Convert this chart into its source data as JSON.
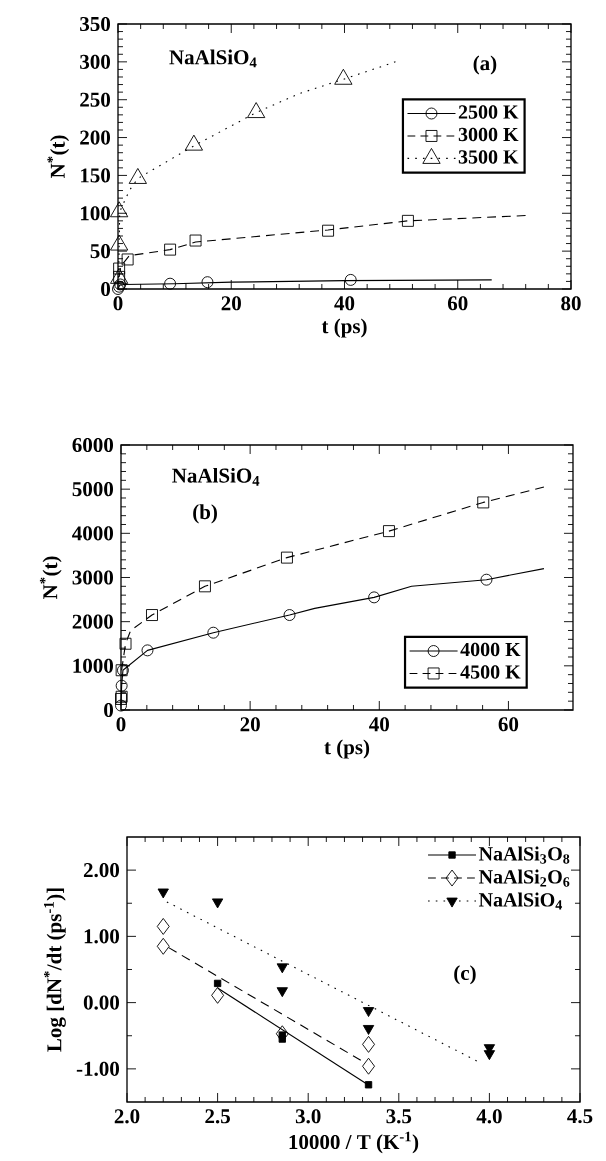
{
  "chart_data": [
    {
      "type": "line",
      "xlabel": "t (ps)",
      "ylabel": "N$^{*}$(t)",
      "xlim": [
        0,
        80
      ],
      "ylim": [
        0,
        350
      ],
      "xticks": [
        0,
        20,
        40,
        60,
        80
      ],
      "yticks": [
        0,
        50,
        100,
        150,
        200,
        250,
        300,
        350
      ],
      "grid": false,
      "legend": "right",
      "annotations": [
        "NaAlSiO$_{4}$",
        "(a)"
      ],
      "series": [
        {
          "name": "2500 K",
          "type": "scatter",
          "marker": "circle",
          "line_style": "solid",
          "color": "#000000",
          "x": [
            0,
            0.2,
            0.4,
            9.2,
            15.8,
            41.1
          ],
          "values": [
            0,
            3,
            6,
            7,
            9,
            12
          ]
        },
        {
          "name": "3000 K",
          "type": "scatter",
          "marker": "square",
          "line_style": "dashed",
          "color": "#000000",
          "x": [
            0.2,
            0.2,
            1.7,
            9.2,
            13.7,
            37.1,
            51.2
          ],
          "values": [
            16,
            27,
            39,
            52,
            64,
            77,
            90
          ]
        },
        {
          "name": "3500 K",
          "type": "scatter",
          "marker": "triangle",
          "line_style": "dotted",
          "color": "#000000",
          "x": [
            0.2,
            0.2,
            0.2,
            3.5,
            13.4,
            24.4,
            39.8
          ],
          "values": [
            14,
            58,
            102,
            146,
            190,
            233,
            277
          ]
        },
        {
          "type": "line",
          "line_style": "solid",
          "color": "#000000",
          "x": [
            0,
            0.3,
            1,
            10,
            20,
            40,
            66
          ],
          "values": [
            0,
            5,
            6,
            7,
            9,
            11,
            12
          ]
        },
        {
          "type": "line",
          "line_style": "dashed",
          "color": "#000000",
          "x": [
            0.2,
            0.5,
            2,
            9.2,
            13.7,
            37.1,
            51.2,
            72
          ],
          "values": [
            16,
            30,
            44,
            52,
            62,
            78,
            90,
            97
          ]
        },
        {
          "type": "line",
          "line_style": "dotted",
          "color": "#000000",
          "x": [
            0.1,
            0.2,
            0.3,
            2,
            3.5,
            13.4,
            24.4,
            32,
            39.8,
            49
          ],
          "values": [
            15,
            58,
            102,
            130,
            146,
            189,
            233,
            258,
            277,
            300
          ]
        }
      ]
    },
    {
      "type": "line",
      "xlabel": "t (ps)",
      "ylabel": "N$^{*}$(t)",
      "xlim": [
        0,
        70
      ],
      "ylim": [
        0,
        6000
      ],
      "xticks": [
        0,
        20,
        40,
        60
      ],
      "yticks": [
        0,
        1000,
        2000,
        3000,
        4000,
        5000,
        6000
      ],
      "grid": false,
      "legend": "bottom right",
      "annotations": [
        "NaAlSiO$_{4}$",
        "(b)"
      ],
      "series": [
        {
          "name": "4000 K",
          "type": "scatter",
          "marker": "circle",
          "line_style": "solid",
          "color": "#000000",
          "x": [
            0,
            0.1,
            0.3,
            4.1,
            14.3,
            26.1,
            39.2,
            56.6
          ],
          "values": [
            100,
            550,
            900,
            1350,
            1750,
            2150,
            2550,
            2950
          ]
        },
        {
          "name": "4500 K",
          "type": "scatter",
          "marker": "square",
          "line_style": "dashed",
          "color": "#000000",
          "x": [
            0,
            0.1,
            0.1,
            0.7,
            4.8,
            13,
            25.7,
            41.5,
            56.1
          ],
          "values": [
            250,
            300,
            900,
            1500,
            2150,
            2800,
            3450,
            4050,
            4700
          ]
        },
        {
          "type": "line",
          "line_style": "solid",
          "color": "#000000",
          "x": [
            0,
            0.1,
            0.3,
            4.1,
            14.3,
            26.1,
            30,
            39.2,
            45,
            56.6,
            65.5
          ],
          "values": [
            100,
            550,
            900,
            1350,
            1750,
            2150,
            2300,
            2550,
            2800,
            2950,
            3200
          ]
        },
        {
          "type": "line",
          "line_style": "dashed",
          "color": "#000000",
          "x": [
            0.1,
            0.7,
            1.5,
            4.8,
            13,
            25.7,
            41.5,
            56.1,
            65.5
          ],
          "values": [
            900,
            1500,
            1800,
            2150,
            2800,
            3450,
            4050,
            4700,
            5050
          ]
        }
      ]
    },
    {
      "type": "scatter",
      "xlabel": "10000 / T (K$^{-1}$)",
      "ylabel": "Log [dN$^{*}$/dt (ps$^{-1}$)]",
      "xlim": [
        2.0,
        4.5
      ],
      "ylim": [
        -1.5,
        2.5
      ],
      "xticks": [
        {
          "value": 2,
          "label": "2.0"
        },
        {
          "value": 2.5,
          "label": "2.5"
        },
        {
          "value": 3,
          "label": "3.0"
        },
        {
          "value": 3.5,
          "label": "3.5"
        },
        {
          "value": 4,
          "label": "4.0"
        },
        {
          "value": 4.5,
          "label": "4.5"
        }
      ],
      "yticks": [
        {
          "value": -1,
          "label": "-1.00"
        },
        {
          "value": 0,
          "label": "0.00"
        },
        {
          "value": 1,
          "label": "1.00"
        },
        {
          "value": 2,
          "label": "2.00"
        }
      ],
      "grid": false,
      "legend": "top right",
      "annotations": [
        "(c)"
      ],
      "series": [
        {
          "name": "NaAlSi$_{3}$O$_{8}$",
          "marker": "square",
          "line_style": "solid",
          "color": "#000000",
          "x": [
            2.5,
            2.857,
            2.857,
            3.333
          ],
          "values": [
            0.29,
            -0.49,
            -0.55,
            -1.24
          ]
        },
        {
          "name": "NaAlSi$_{2}$O$_{6}$",
          "marker": "diamond",
          "line_style": "dashed",
          "color": "#000000",
          "x": [
            2.2,
            2.2,
            2.5,
            2.857,
            3.333,
            3.333
          ],
          "values": [
            1.15,
            0.85,
            0.11,
            -0.47,
            -0.63,
            -0.96
          ]
        },
        {
          "name": "NaAlSiO$_{4}$",
          "marker": "triangle",
          "line_style": "dotted",
          "color": "#000000",
          "x": [
            2.2,
            2.5,
            2.857,
            2.857,
            3.333,
            3.333,
            4.0,
            4.0
          ],
          "values": [
            1.67,
            1.52,
            0.54,
            0.18,
            -0.12,
            -0.39,
            -0.68,
            -0.77
          ]
        },
        {
          "type": "line",
          "line_style": "solid",
          "color": "#000000",
          "x": [
            2.5,
            3.33
          ],
          "values": [
            0.22,
            -1.24
          ]
        },
        {
          "type": "line",
          "line_style": "dashed",
          "color": "#000000",
          "x": [
            2.23,
            3.29
          ],
          "values": [
            0.83,
            -0.87
          ]
        },
        {
          "type": "line",
          "line_style": "dotted",
          "color": "#000000",
          "x": [
            2.22,
            3.93
          ],
          "values": [
            1.52,
            -0.88
          ]
        }
      ]
    }
  ]
}
